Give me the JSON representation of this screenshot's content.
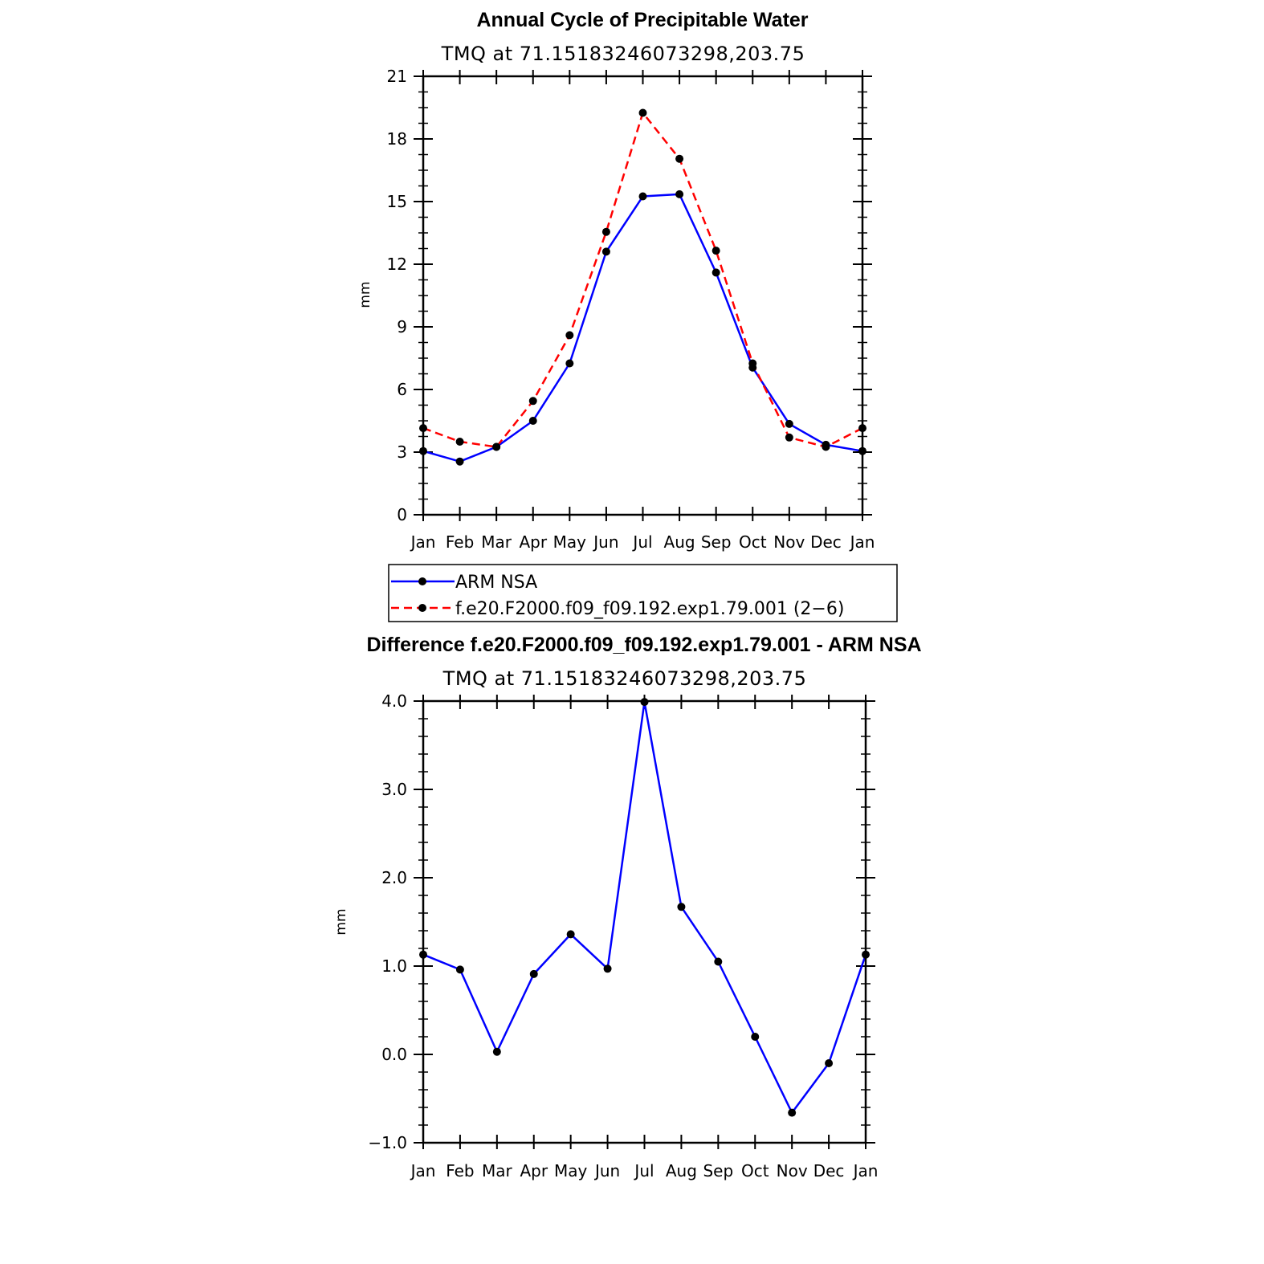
{
  "chart_data": [
    {
      "type": "line",
      "title": "Annual Cycle of Precipitable Water",
      "subtitle": "TMQ at 71.15183246073298,203.75",
      "xlabel": "",
      "ylabel": "mm",
      "categories": [
        "Jan",
        "Feb",
        "Mar",
        "Apr",
        "May",
        "Jun",
        "Jul",
        "Aug",
        "Sep",
        "Oct",
        "Nov",
        "Dec",
        "Jan"
      ],
      "ylim": [
        0,
        21
      ],
      "yticks": [
        "0",
        "3",
        "6",
        "9",
        "12",
        "15",
        "18",
        "21"
      ],
      "yticks_values": [
        0,
        3,
        6,
        9,
        12,
        15,
        18,
        21
      ],
      "series": [
        {
          "name": "ARM NSA",
          "color": "#0000ff",
          "dash": "solid",
          "values": [
            3.05,
            2.55,
            3.25,
            4.5,
            7.25,
            12.6,
            15.25,
            15.35,
            11.6,
            7.05,
            4.35,
            3.35,
            3.05
          ]
        },
        {
          "name": "f.e20.F2000.f09_f09.192.exp1.79.001 (2−6)",
          "color": "#ff0000",
          "dash": "dashed",
          "values": [
            4.15,
            3.5,
            3.25,
            5.45,
            8.6,
            13.55,
            19.25,
            17.05,
            12.65,
            7.25,
            3.7,
            3.25,
            4.15
          ]
        }
      ],
      "legend": {
        "position": "below",
        "items": [
          "ARM NSA",
          "f.e20.F2000.f09_f09.192.exp1.79.001 (2−6)"
        ]
      }
    },
    {
      "type": "line",
      "title": "Difference f.e20.F2000.f09_f09.192.exp1.79.001 - ARM NSA",
      "subtitle": "TMQ at 71.15183246073298,203.75",
      "xlabel": "",
      "ylabel": "mm",
      "categories": [
        "Jan",
        "Feb",
        "Mar",
        "Apr",
        "May",
        "Jun",
        "Jul",
        "Aug",
        "Sep",
        "Oct",
        "Nov",
        "Dec",
        "Jan"
      ],
      "ylim": [
        -1.0,
        4.0
      ],
      "yticks": [
        "−1.0",
        "0.0",
        "1.0",
        "2.0",
        "3.0",
        "4.0"
      ],
      "yticks_values": [
        -1.0,
        0.0,
        1.0,
        2.0,
        3.0,
        4.0
      ],
      "series": [
        {
          "name": "Difference",
          "color": "#0000ff",
          "dash": "solid",
          "values": [
            1.13,
            0.96,
            0.03,
            0.91,
            1.36,
            0.97,
            3.99,
            1.67,
            1.05,
            0.2,
            -0.66,
            -0.1,
            1.13
          ]
        }
      ]
    }
  ]
}
